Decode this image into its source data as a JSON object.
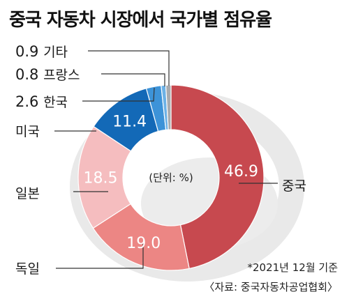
{
  "title": "중국 자동차 시장에서 국가별 점유율",
  "unit_label": "(단위: %)",
  "footnote": "*2021년 12월 기준",
  "source": "〈자료: 중국자동차공업협회〉",
  "chart_data": {
    "type": "pie",
    "donut": true,
    "title": "중국 자동차 시장에서 국가별 점유율",
    "unit": "%",
    "start_angle": 0,
    "direction": "clockwise",
    "categories": [
      "중국",
      "독일",
      "일본",
      "미국",
      "한국",
      "프랑스",
      "기타"
    ],
    "values": [
      46.9,
      19.0,
      18.5,
      11.4,
      2.6,
      0.8,
      0.9
    ],
    "colors": [
      "#c7494f",
      "#ec8684",
      "#f5bdbf",
      "#1369b7",
      "#3d93d8",
      "#6cb1e6",
      "#a8abaf"
    ],
    "value_labels_inside": [
      "46.9",
      "19.0",
      "18.5",
      "11.4"
    ],
    "legend": "callouts"
  }
}
